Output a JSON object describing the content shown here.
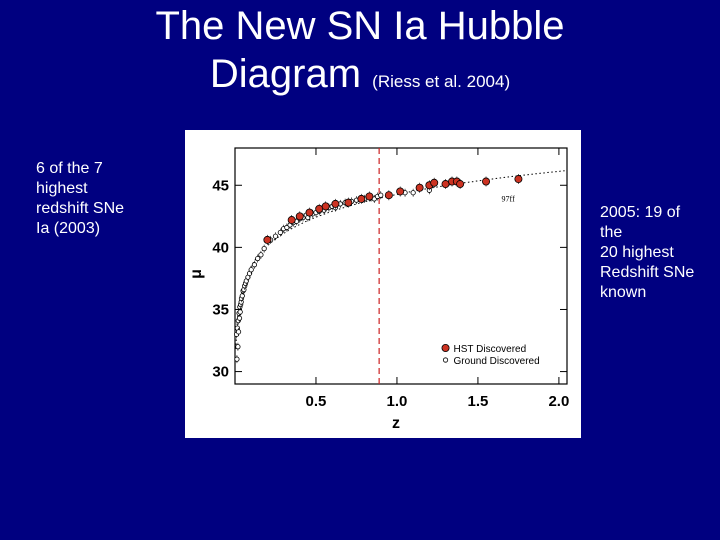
{
  "header": {
    "title_line1": "The New SN Ia Hubble",
    "title_line2": "Diagram",
    "citation": "(Riess et al. 2004)"
  },
  "notes": {
    "left": [
      "6 of the 7",
      "highest",
      "redshift SNe",
      "Ia (2003)"
    ],
    "right": [
      "2005: 19 of",
      "the",
      "20 highest",
      "Redshift SNe",
      "known"
    ]
  },
  "colors": {
    "background": "#000080",
    "text": "#ffffff",
    "hst_marker": "#cc3322",
    "divider": "#cc2222"
  },
  "chart_data": {
    "type": "scatter",
    "xlabel": "z",
    "ylabel": "μ",
    "xlim": [
      0,
      2.05
    ],
    "ylim": [
      29,
      48
    ],
    "xticks": [
      0.5,
      1.0,
      1.5,
      2.0
    ],
    "xtick_labels": [
      "0.5",
      "1.0",
      "1.5",
      "2.0"
    ],
    "yticks": [
      30,
      35,
      40,
      45
    ],
    "ytick_labels": [
      "30",
      "35",
      "40",
      "45"
    ],
    "vline_x": 0.89,
    "annotation": "97ff",
    "annotation_point": [
      1.72,
      44.8
    ],
    "legend_position": "bottom-right",
    "series": [
      {
        "name": "HST Discovered",
        "marker": "filled-circle",
        "points": [
          [
            0.2,
            40.6
          ],
          [
            0.35,
            42.2
          ],
          [
            0.4,
            42.5
          ],
          [
            0.46,
            42.8
          ],
          [
            0.52,
            43.1
          ],
          [
            0.56,
            43.3
          ],
          [
            0.62,
            43.5
          ],
          [
            0.7,
            43.6
          ],
          [
            0.78,
            43.9
          ],
          [
            0.83,
            44.1
          ],
          [
            0.95,
            44.2
          ],
          [
            1.02,
            44.5
          ],
          [
            1.14,
            44.8
          ],
          [
            1.2,
            45.0
          ],
          [
            1.23,
            45.2
          ],
          [
            1.3,
            45.1
          ],
          [
            1.34,
            45.3
          ],
          [
            1.37,
            45.3
          ],
          [
            1.39,
            45.1
          ],
          [
            1.55,
            45.3
          ],
          [
            1.75,
            45.5
          ]
        ]
      },
      {
        "name": "Ground Discovered",
        "marker": "open-circle",
        "points": [
          [
            0.01,
            33.0
          ],
          [
            0.012,
            31.0
          ],
          [
            0.015,
            33.5
          ],
          [
            0.018,
            32.0
          ],
          [
            0.02,
            34.1
          ],
          [
            0.022,
            33.2
          ],
          [
            0.025,
            34.7
          ],
          [
            0.028,
            34.3
          ],
          [
            0.03,
            35.2
          ],
          [
            0.032,
            34.8
          ],
          [
            0.035,
            35.4
          ],
          [
            0.038,
            35.6
          ],
          [
            0.04,
            35.9
          ],
          [
            0.045,
            36.1
          ],
          [
            0.05,
            36.5
          ],
          [
            0.055,
            36.6
          ],
          [
            0.06,
            36.9
          ],
          [
            0.065,
            37.1
          ],
          [
            0.07,
            37.3
          ],
          [
            0.08,
            37.6
          ],
          [
            0.09,
            37.9
          ],
          [
            0.1,
            38.2
          ],
          [
            0.12,
            38.6
          ],
          [
            0.14,
            39.1
          ],
          [
            0.16,
            39.4
          ],
          [
            0.18,
            39.9
          ],
          [
            0.22,
            40.6
          ],
          [
            0.25,
            40.9
          ],
          [
            0.28,
            41.2
          ],
          [
            0.3,
            41.5
          ],
          [
            0.32,
            41.6
          ],
          [
            0.34,
            41.8
          ],
          [
            0.36,
            42.0
          ],
          [
            0.38,
            42.1
          ],
          [
            0.4,
            42.3
          ],
          [
            0.42,
            42.4
          ],
          [
            0.44,
            42.6
          ],
          [
            0.45,
            42.4
          ],
          [
            0.48,
            42.7
          ],
          [
            0.5,
            42.8
          ],
          [
            0.52,
            42.9
          ],
          [
            0.55,
            43.0
          ],
          [
            0.58,
            43.2
          ],
          [
            0.6,
            43.3
          ],
          [
            0.62,
            43.2
          ],
          [
            0.65,
            43.5
          ],
          [
            0.68,
            43.6
          ],
          [
            0.72,
            43.7
          ],
          [
            0.75,
            43.8
          ],
          [
            0.8,
            43.9
          ],
          [
            0.84,
            44.0
          ],
          [
            0.86,
            43.9
          ],
          [
            0.88,
            44.1
          ],
          [
            0.9,
            44.2
          ],
          [
            0.95,
            44.2
          ],
          [
            1.05,
            44.4
          ],
          [
            1.1,
            44.4
          ],
          [
            1.2,
            44.6
          ]
        ]
      }
    ]
  }
}
